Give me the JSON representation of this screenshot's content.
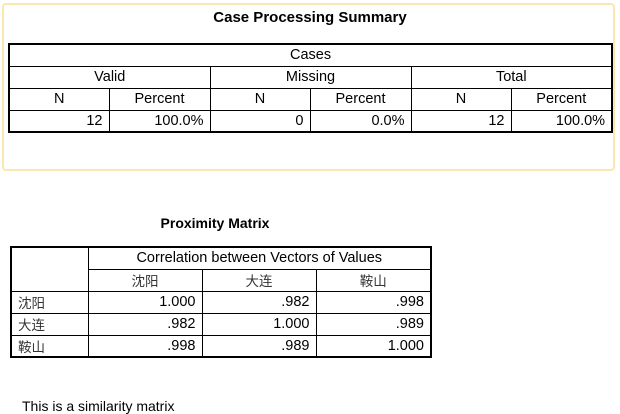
{
  "case_summary": {
    "title": "Case Processing Summary",
    "group_header": "Cases",
    "subgroups": [
      "Valid",
      "Missing",
      "Total"
    ],
    "columns": [
      "N",
      "Percent",
      "N",
      "Percent",
      "N",
      "Percent"
    ],
    "values": [
      "12",
      "100.0%",
      "0",
      "0.0%",
      "12",
      "100.0%"
    ]
  },
  "proximity": {
    "title": "Proximity Matrix",
    "header": "Correlation between Vectors of Values",
    "columns": [
      "沈阳",
      "大连",
      "鞍山"
    ],
    "rows": [
      {
        "label": "沈阳",
        "values": [
          "1.000",
          ".982",
          ".998"
        ]
      },
      {
        "label": "大连",
        "values": [
          ".982",
          "1.000",
          ".989"
        ]
      },
      {
        "label": "鞍山",
        "values": [
          ".998",
          ".989",
          "1.000"
        ]
      }
    ],
    "footnote": "This is a similarity matrix"
  }
}
